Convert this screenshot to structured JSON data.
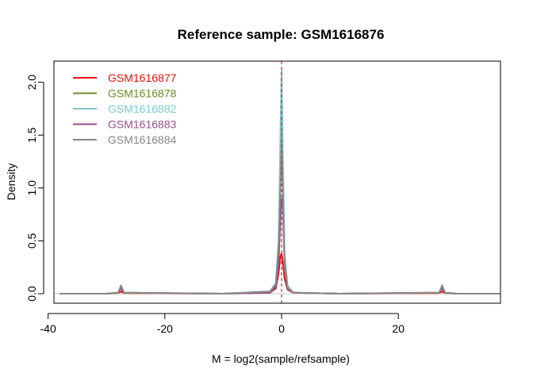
{
  "chart_data": {
    "type": "line",
    "title": "Reference sample: GSM1616876",
    "xlabel": "M = log2(sample/refsample)",
    "ylabel": "Density",
    "xlim": [
      -39,
      37.5
    ],
    "ylim": [
      -0.09,
      2.2
    ],
    "xticks": [
      -40,
      -20,
      0,
      20
    ],
    "yticks": [
      0.0,
      0.5,
      1.0,
      1.5,
      2.0
    ],
    "xtick_labels": [
      "-40",
      "-20",
      "0",
      "20"
    ],
    "ytick_labels": [
      "0.0",
      "0.5",
      "1.0",
      "1.5",
      "2.0"
    ],
    "reference_vline": {
      "x": 0,
      "color": "#d62728",
      "style": "dashed"
    },
    "legend_position": "top-left",
    "series": [
      {
        "name": "GSM1616877",
        "color": "#e8120e",
        "x": [
          -38,
          -30,
          -28,
          -27.5,
          -27,
          -10,
          -2,
          -1,
          -0.5,
          -0.2,
          0,
          0.2,
          0.5,
          1,
          2,
          10,
          27,
          27.5,
          28,
          30,
          37.5
        ],
        "y": [
          0,
          0,
          0.005,
          0.02,
          0.005,
          0,
          0.01,
          0.05,
          0.2,
          0.35,
          0.38,
          0.3,
          0.15,
          0.04,
          0.01,
          0,
          0.005,
          0.02,
          0.005,
          0,
          0
        ]
      },
      {
        "name": "GSM1616878",
        "color": "#6b8e23",
        "x": [
          -38,
          -30,
          -28,
          -27.5,
          -27,
          -10,
          -2,
          -1,
          -0.5,
          -0.2,
          0,
          0.2,
          0.5,
          1,
          2,
          10,
          27,
          27.5,
          28,
          30,
          37.5
        ],
        "y": [
          0,
          0,
          0.01,
          0.06,
          0.01,
          0,
          0.02,
          0.08,
          0.4,
          1.2,
          1.9,
          1.1,
          0.35,
          0.07,
          0.01,
          0,
          0.01,
          0.06,
          0.01,
          0,
          0
        ]
      },
      {
        "name": "GSM1616882",
        "color": "#7ec8cf",
        "x": [
          -38,
          -30,
          -28,
          -27.5,
          -27,
          -10,
          -2,
          -1,
          -0.5,
          -0.2,
          0,
          0.2,
          0.5,
          1,
          2,
          10,
          27,
          27.5,
          28,
          30,
          37.5
        ],
        "y": [
          0,
          0,
          0.01,
          0.07,
          0.01,
          0,
          0.02,
          0.1,
          0.5,
          1.5,
          2.12,
          1.4,
          0.4,
          0.08,
          0.01,
          0,
          0.01,
          0.07,
          0.01,
          0,
          0
        ]
      },
      {
        "name": "GSM1616883",
        "color": "#984f8f",
        "x": [
          -38,
          -35,
          -30,
          -28,
          -27.5,
          -27,
          -10,
          -2,
          -1,
          -0.5,
          -0.2,
          0,
          0.2,
          0.5,
          1,
          2,
          10,
          27,
          27.5,
          28,
          30,
          37.5
        ],
        "y": [
          0,
          0,
          0,
          0.01,
          0.05,
          0.01,
          0,
          0.01,
          0.06,
          0.3,
          0.7,
          0.9,
          0.85,
          0.3,
          0.05,
          0.01,
          0,
          0.01,
          0.05,
          0.01,
          0,
          0
        ]
      },
      {
        "name": "GSM1616884",
        "color": "#888888",
        "x": [
          -38,
          -30,
          -28,
          -27.5,
          -27,
          -10,
          -2,
          -1,
          -0.5,
          -0.2,
          0,
          0.2,
          0.5,
          1,
          2,
          10,
          27,
          27.5,
          28,
          30,
          37.5
        ],
        "y": [
          0,
          0,
          0.01,
          0.08,
          0.01,
          0,
          0.02,
          0.09,
          0.45,
          1.0,
          1.43,
          1.0,
          0.3,
          0.06,
          0.01,
          0,
          0.01,
          0.08,
          0.01,
          0,
          0
        ]
      }
    ]
  }
}
